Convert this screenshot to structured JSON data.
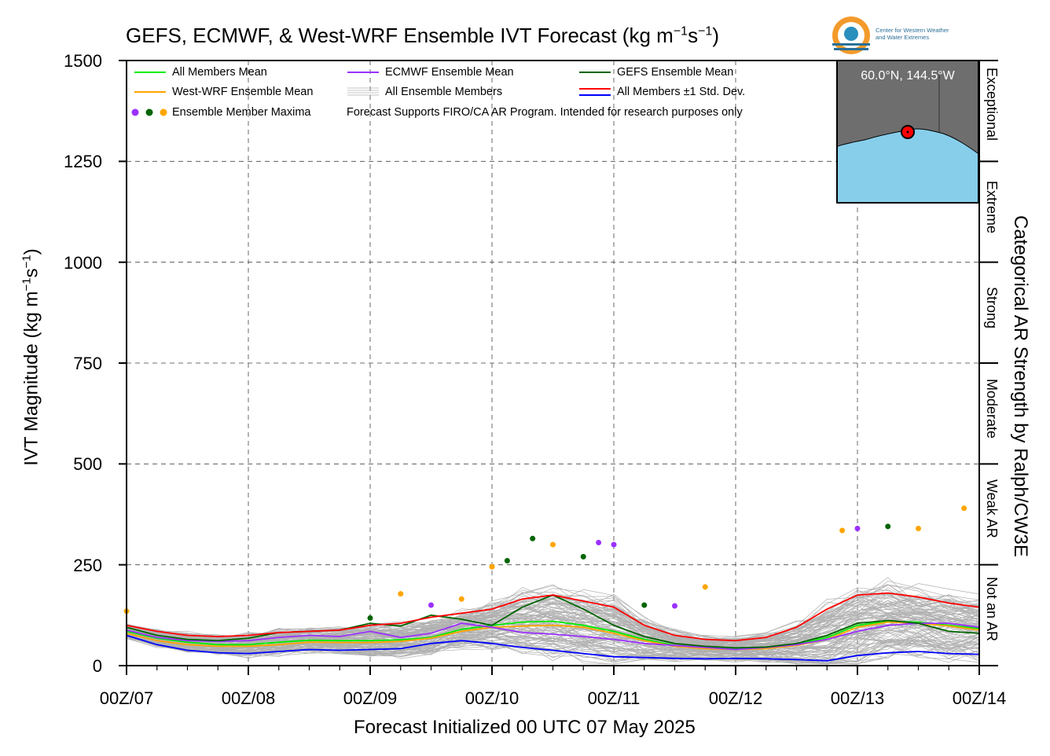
{
  "title": {
    "text": "GEFS, ECMWF, & West-WRF Ensemble IVT Forecast (kg m",
    "sup1": "−1",
    "mid": "s",
    "sup2": "−1",
    "end": ")"
  },
  "colors": {
    "all_mean": "#00ee00",
    "wrf_mean": "#ffa500",
    "ecmwf_mean": "#9b30ff",
    "gefs_mean": "#006400",
    "plus_sd": "#ff0000",
    "minus_sd": "#0000ff",
    "members": "#b0b0b0",
    "map_land": "#6e6e6e",
    "map_water": "#87ceeb"
  },
  "legend": {
    "all_mean": "All Members Mean",
    "wrf_mean": "West-WRF Ensemble Mean",
    "maxima": "Ensemble Member Maxima",
    "ecmwf_mean": "ECMWF Ensemble Mean",
    "all_members": "All Ensemble Members",
    "note": "Forecast Supports FIRO/CA AR Program. Intended for research purposes only",
    "gefs_mean": "GEFS Ensemble Mean",
    "sd": "All Members ±1 Std. Dev."
  },
  "inset": {
    "coords": "60.0°N, 144.5°W"
  },
  "logo": {
    "line1": "Center for Western Weather",
    "line2": "and Water Extremes"
  },
  "categories": [
    "Exceptional",
    "Extreme",
    "Strong",
    "Moderate",
    "Weak AR",
    "Not an AR"
  ],
  "right_label": "Categorical AR Strength by Ralph/CW3E",
  "chart_data": {
    "type": "line",
    "title": "GEFS, ECMWF, & West-WRF Ensemble IVT Forecast (kg m−1s−1)",
    "xlabel": "Forecast Initialized 00 UTC 07 May 2025",
    "ylabel": "IVT Magnitude (kg m−1s−1)",
    "ylim": [
      0,
      1500
    ],
    "xlim": [
      0,
      168
    ],
    "x_tick_labels": [
      "00Z/07",
      "00Z/08",
      "00Z/09",
      "00Z/10",
      "00Z/11",
      "00Z/12",
      "00Z/13",
      "00Z/14"
    ],
    "y_ticks": [
      0,
      250,
      500,
      750,
      1000,
      1250,
      1500
    ],
    "grid": true,
    "legend_position": "top-left",
    "category_thresholds": [
      0,
      250,
      500,
      750,
      1000,
      1250,
      1500
    ],
    "x": [
      0,
      6,
      12,
      18,
      24,
      30,
      36,
      42,
      48,
      54,
      60,
      66,
      72,
      78,
      84,
      90,
      96,
      102,
      108,
      114,
      120,
      126,
      132,
      138,
      144,
      150,
      156,
      162,
      168
    ],
    "series": [
      {
        "name": "All Members Mean",
        "values": [
          85,
          68,
          58,
          52,
          52,
          58,
          63,
          62,
          62,
          64,
          70,
          90,
          100,
          108,
          110,
          100,
          85,
          65,
          50,
          45,
          42,
          44,
          52,
          70,
          100,
          110,
          108,
          100,
          92
        ]
      },
      {
        "name": "West-WRF Ensemble Mean",
        "values": [
          80,
          62,
          52,
          48,
          48,
          52,
          58,
          57,
          57,
          60,
          68,
          85,
          95,
          98,
          100,
          95,
          80,
          62,
          48,
          42,
          40,
          42,
          50,
          65,
          95,
          108,
          105,
          98,
          88
        ]
      },
      {
        "name": "ECMWF Ensemble Mean",
        "values": [
          88,
          70,
          62,
          60,
          62,
          70,
          75,
          72,
          85,
          70,
          80,
          105,
          95,
          82,
          78,
          72,
          65,
          55,
          50,
          45,
          40,
          45,
          52,
          65,
          85,
          100,
          105,
          105,
          95
        ]
      },
      {
        "name": "GEFS Ensemble Mean",
        "values": [
          95,
          75,
          65,
          62,
          68,
          82,
          85,
          88,
          105,
          98,
          125,
          115,
          100,
          145,
          175,
          140,
          100,
          72,
          55,
          48,
          44,
          46,
          55,
          75,
          105,
          112,
          105,
          85,
          80
        ]
      },
      {
        "name": "All Members ±1 Std. Dev.",
        "values": [
          100,
          85,
          75,
          72,
          75,
          82,
          85,
          88,
          100,
          105,
          120,
          130,
          140,
          165,
          175,
          160,
          145,
          100,
          75,
          65,
          62,
          70,
          95,
          140,
          175,
          180,
          170,
          155,
          145
        ]
      },
      {
        "name": "minus_sd",
        "values": [
          75,
          52,
          38,
          32,
          30,
          35,
          40,
          38,
          40,
          42,
          55,
          62,
          55,
          45,
          38,
          30,
          22,
          20,
          18,
          17,
          18,
          17,
          15,
          12,
          25,
          32,
          35,
          30,
          28
        ]
      }
    ],
    "maxima": [
      {
        "x": 0,
        "y": 135,
        "model": "West-WRF"
      },
      {
        "x": 48,
        "y": 118,
        "model": "GEFS"
      },
      {
        "x": 54,
        "y": 178,
        "model": "West-WRF"
      },
      {
        "x": 60,
        "y": 150,
        "model": "ECMWF"
      },
      {
        "x": 66,
        "y": 165,
        "model": "West-WRF"
      },
      {
        "x": 72,
        "y": 245,
        "model": "West-WRF"
      },
      {
        "x": 75,
        "y": 260,
        "model": "GEFS"
      },
      {
        "x": 80,
        "y": 315,
        "model": "GEFS"
      },
      {
        "x": 84,
        "y": 300,
        "model": "West-WRF"
      },
      {
        "x": 90,
        "y": 270,
        "model": "GEFS"
      },
      {
        "x": 93,
        "y": 305,
        "model": "ECMWF"
      },
      {
        "x": 96,
        "y": 300,
        "model": "ECMWF"
      },
      {
        "x": 102,
        "y": 150,
        "model": "GEFS"
      },
      {
        "x": 108,
        "y": 148,
        "model": "ECMWF"
      },
      {
        "x": 114,
        "y": 195,
        "model": "West-WRF"
      },
      {
        "x": 141,
        "y": 335,
        "model": "West-WRF"
      },
      {
        "x": 144,
        "y": 340,
        "model": "ECMWF"
      },
      {
        "x": 150,
        "y": 345,
        "model": "GEFS"
      },
      {
        "x": 156,
        "y": 340,
        "model": "West-WRF"
      },
      {
        "x": 165,
        "y": 390,
        "model": "West-WRF"
      }
    ]
  }
}
